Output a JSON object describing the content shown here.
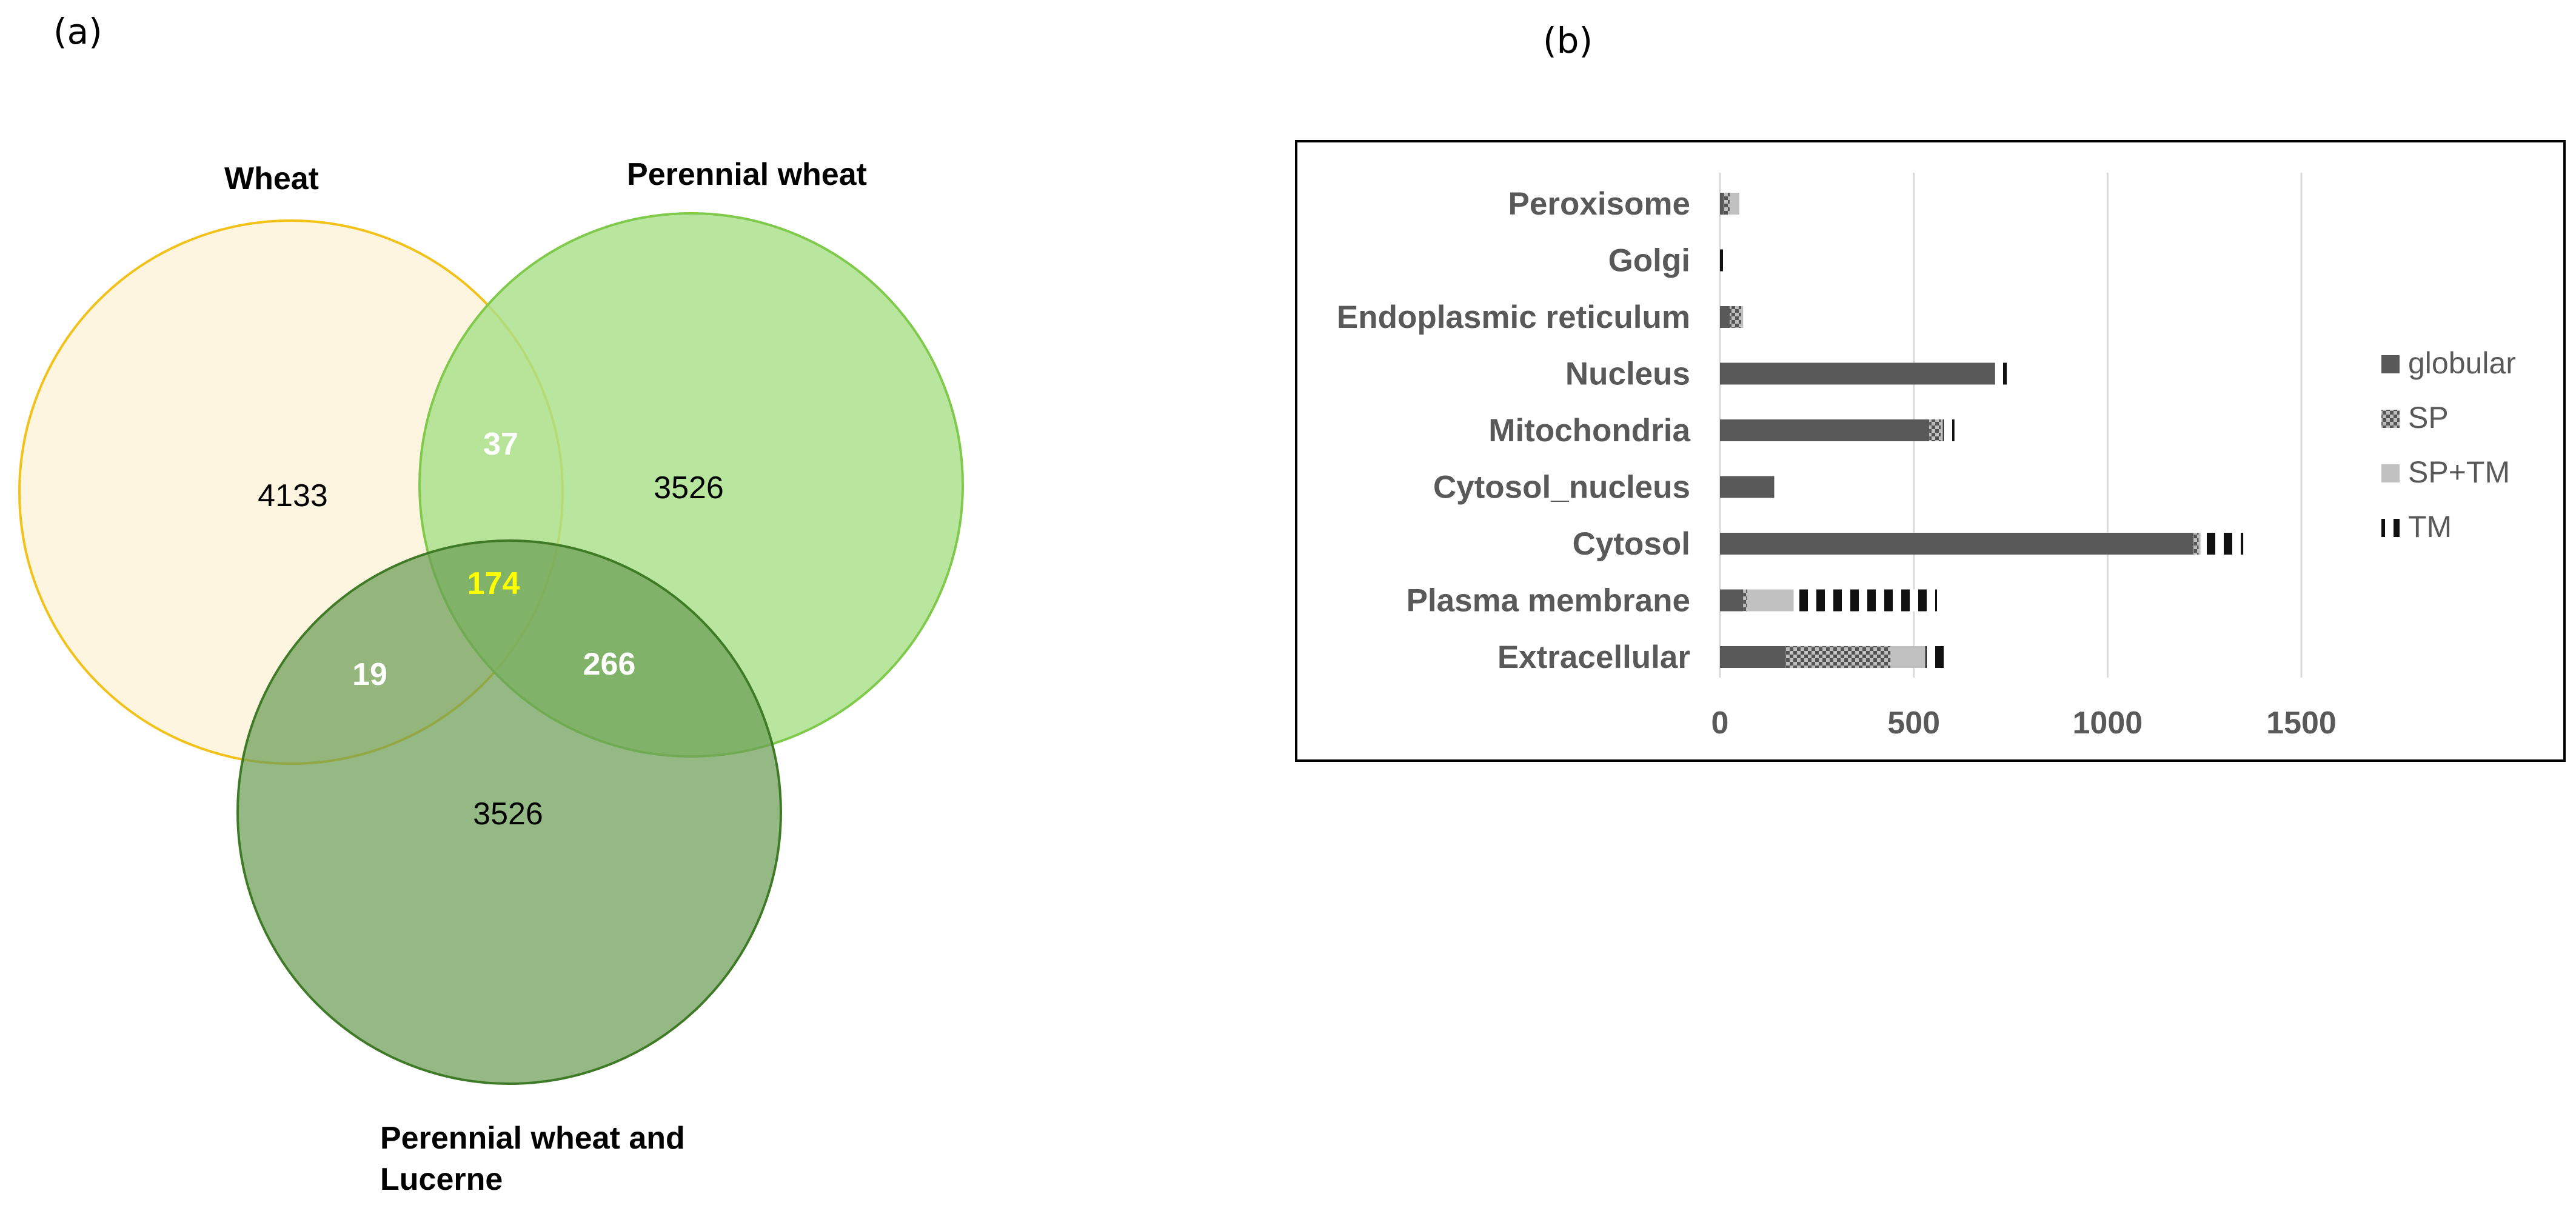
{
  "panels": {
    "a": "(a)",
    "b": "(b)"
  },
  "venn": {
    "sets": {
      "wheat": "Wheat",
      "perennial": "Perennial wheat",
      "pwl_line1": "Perennial wheat and",
      "pwl_line2": "Lucerne"
    },
    "counts": {
      "wheat_only": "4133",
      "perennial_only": "3526",
      "pwl_only": "3526",
      "wheat_perennial": "37",
      "wheat_pwl": "19",
      "perennial_pwl": "266",
      "all_three": "174"
    },
    "colors": {
      "wheat_fill": "#fef5e0",
      "wheat_stroke": "#f2c21a",
      "perennial_fill": "#a8e08a",
      "perennial_stroke": "#7fc94b",
      "pwl_fill": "#6b9e54",
      "pwl_stroke": "#3f7a27",
      "highlight": "#ffff00"
    }
  },
  "chart_data": {
    "type": "bar",
    "stacked": true,
    "orientation": "horizontal",
    "title": "",
    "xlabel": "",
    "ylabel": "",
    "xlim": [
      0,
      1500
    ],
    "xticks": [
      0,
      500,
      1000,
      1500
    ],
    "grid": true,
    "legend_position": "right",
    "categories": [
      "Peroxisome",
      "Golgi",
      "Endoplasmic reticulum",
      "Nucleus",
      "Mitochondria",
      "Cytosol_nucleus",
      "Cytosol",
      "Plasma membrane",
      "Extracellular"
    ],
    "series": [
      {
        "name": "globular",
        "values": [
          10,
          0,
          25,
          710,
          540,
          140,
          1220,
          60,
          170
        ]
      },
      {
        "name": "SP",
        "values": [
          15,
          0,
          30,
          0,
          30,
          0,
          15,
          10,
          270
        ]
      },
      {
        "name": "SP+TM",
        "values": [
          25,
          0,
          5,
          0,
          5,
          0,
          5,
          120,
          90
        ]
      },
      {
        "name": "TM",
        "values": [
          0,
          10,
          10,
          30,
          30,
          5,
          110,
          370,
          60
        ]
      }
    ],
    "colors": {
      "globular": "#595959",
      "SP": "#8c8c8c",
      "SP+TM": "#c0c0c0",
      "TM": "#111111",
      "grid": "#d9d9d9",
      "frame": "#000000"
    }
  }
}
